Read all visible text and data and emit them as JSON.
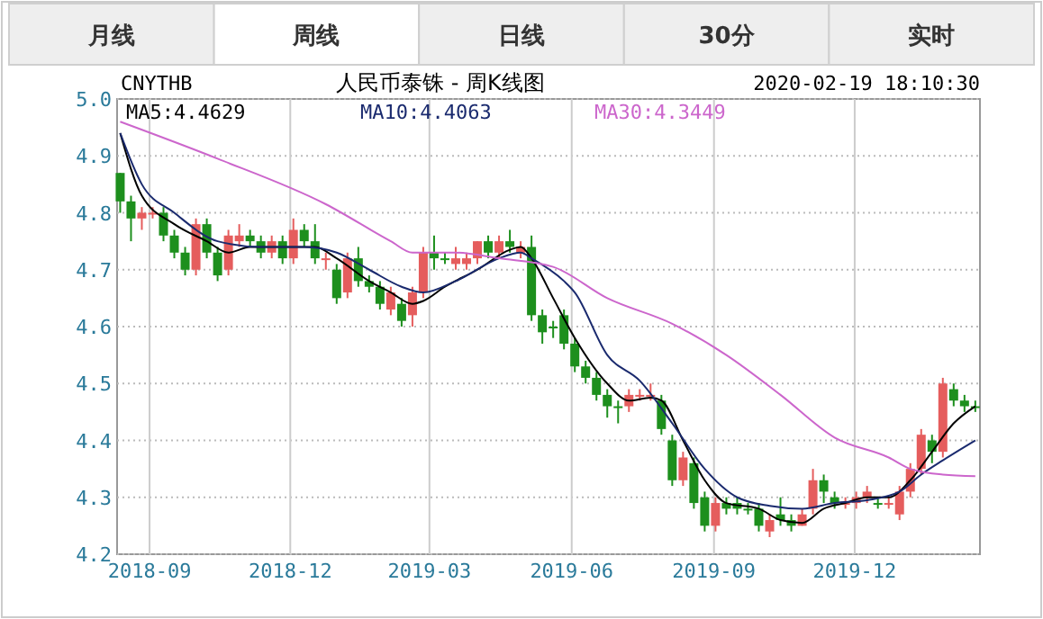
{
  "chart_data": {
    "type": "candlestick",
    "title": "人民币泰铢 - 周K线图",
    "annotations": [
      "月线",
      "周线",
      "日线",
      "30分",
      "实时",
      "CNYTHB",
      "2020-02-19 18:10:30"
    ],
    "x": [
      "2018-08-13",
      "2018-08-20",
      "2018-08-27",
      "2018-09-03",
      "2018-09-10",
      "2018-09-17",
      "2018-09-24",
      "2018-10-01",
      "2018-10-08",
      "2018-10-15",
      "2018-10-22",
      "2018-10-29",
      "2018-11-05",
      "2018-11-12",
      "2018-11-19",
      "2018-11-26",
      "2018-12-03",
      "2018-12-10",
      "2018-12-17",
      "2018-12-24",
      "2018-12-31",
      "2019-01-07",
      "2019-01-14",
      "2019-01-21",
      "2019-01-28",
      "2019-02-04",
      "2019-02-11",
      "2019-02-18",
      "2019-02-25",
      "2019-03-04",
      "2019-03-11",
      "2019-03-18",
      "2019-03-25",
      "2019-04-01",
      "2019-04-08",
      "2019-04-15",
      "2019-04-22",
      "2019-04-29",
      "2019-05-06",
      "2019-05-13",
      "2019-05-20",
      "2019-05-27",
      "2019-06-03",
      "2019-06-10",
      "2019-06-17",
      "2019-06-24",
      "2019-07-01",
      "2019-07-08",
      "2019-07-15",
      "2019-07-22",
      "2019-07-29",
      "2019-08-05",
      "2019-08-12",
      "2019-08-19",
      "2019-08-26",
      "2019-09-02",
      "2019-09-09",
      "2019-09-16",
      "2019-09-23",
      "2019-09-30",
      "2019-10-07",
      "2019-10-14",
      "2019-10-21",
      "2019-10-28",
      "2019-11-04",
      "2019-11-11",
      "2019-11-18",
      "2019-11-25",
      "2019-12-02",
      "2019-12-09",
      "2019-12-16",
      "2019-12-23",
      "2019-12-30",
      "2020-01-06",
      "2020-01-13",
      "2020-01-20",
      "2020-01-27",
      "2020-02-03",
      "2020-02-10",
      "2020-02-17"
    ],
    "ohlc": [
      [
        4.87,
        4.87,
        4.8,
        4.82
      ],
      [
        4.82,
        4.83,
        4.75,
        4.79
      ],
      [
        4.79,
        4.81,
        4.77,
        4.8
      ],
      [
        4.8,
        4.81,
        4.79,
        4.8
      ],
      [
        4.8,
        4.81,
        4.75,
        4.76
      ],
      [
        4.76,
        4.77,
        4.72,
        4.73
      ],
      [
        4.73,
        4.74,
        4.69,
        4.7
      ],
      [
        4.7,
        4.79,
        4.69,
        4.78
      ],
      [
        4.78,
        4.79,
        4.72,
        4.73
      ],
      [
        4.73,
        4.74,
        4.68,
        4.69
      ],
      [
        4.7,
        4.77,
        4.69,
        4.76
      ],
      [
        4.75,
        4.78,
        4.74,
        4.76
      ],
      [
        4.76,
        4.77,
        4.74,
        4.75
      ],
      [
        4.75,
        4.76,
        4.72,
        4.73
      ],
      [
        4.73,
        4.76,
        4.72,
        4.75
      ],
      [
        4.75,
        4.76,
        4.71,
        4.72
      ],
      [
        4.72,
        4.79,
        4.71,
        4.77
      ],
      [
        4.77,
        4.78,
        4.74,
        4.75
      ],
      [
        4.75,
        4.78,
        4.71,
        4.72
      ],
      [
        4.72,
        4.73,
        4.7,
        4.72
      ],
      [
        4.7,
        4.71,
        4.64,
        4.65
      ],
      [
        4.66,
        4.73,
        4.65,
        4.72
      ],
      [
        4.72,
        4.74,
        4.67,
        4.68
      ],
      [
        4.68,
        4.69,
        4.66,
        4.67
      ],
      [
        4.67,
        4.68,
        4.63,
        4.64
      ],
      [
        4.63,
        4.67,
        4.62,
        4.66
      ],
      [
        4.64,
        4.65,
        4.6,
        4.61
      ],
      [
        4.62,
        4.67,
        4.6,
        4.66
      ],
      [
        4.66,
        4.74,
        4.65,
        4.73
      ],
      [
        4.73,
        4.76,
        4.7,
        4.72
      ],
      [
        4.72,
        4.73,
        4.71,
        4.72
      ],
      [
        4.71,
        4.74,
        4.7,
        4.72
      ],
      [
        4.71,
        4.73,
        4.7,
        4.72
      ],
      [
        4.72,
        4.75,
        4.71,
        4.75
      ],
      [
        4.75,
        4.76,
        4.72,
        4.73
      ],
      [
        4.73,
        4.76,
        4.72,
        4.75
      ],
      [
        4.75,
        4.77,
        4.73,
        4.74
      ],
      [
        4.73,
        4.75,
        4.72,
        4.74
      ],
      [
        4.74,
        4.76,
        4.61,
        4.62
      ],
      [
        4.62,
        4.63,
        4.57,
        4.59
      ],
      [
        4.6,
        4.61,
        4.58,
        4.6
      ],
      [
        4.62,
        4.63,
        4.56,
        4.57
      ],
      [
        4.57,
        4.58,
        4.52,
        4.53
      ],
      [
        4.53,
        4.54,
        4.5,
        4.51
      ],
      [
        4.51,
        4.52,
        4.47,
        4.48
      ],
      [
        4.48,
        4.49,
        4.44,
        4.46
      ],
      [
        4.46,
        4.47,
        4.43,
        4.46
      ],
      [
        4.46,
        4.49,
        4.45,
        4.48
      ],
      [
        4.48,
        4.49,
        4.47,
        4.48
      ],
      [
        4.48,
        4.5,
        4.47,
        4.48
      ],
      [
        4.47,
        4.48,
        4.41,
        4.42
      ],
      [
        4.4,
        4.41,
        4.32,
        4.33
      ],
      [
        4.33,
        4.38,
        4.32,
        4.37
      ],
      [
        4.36,
        4.37,
        4.28,
        4.29
      ],
      [
        4.3,
        4.31,
        4.24,
        4.25
      ],
      [
        4.25,
        4.3,
        4.24,
        4.29
      ],
      [
        4.29,
        4.3,
        4.27,
        4.28
      ],
      [
        4.29,
        4.3,
        4.27,
        4.28
      ],
      [
        4.28,
        4.29,
        4.27,
        4.28
      ],
      [
        4.28,
        4.29,
        4.24,
        4.25
      ],
      [
        4.24,
        4.27,
        4.23,
        4.26
      ],
      [
        4.27,
        4.3,
        4.25,
        4.26
      ],
      [
        4.26,
        4.27,
        4.24,
        4.25
      ],
      [
        4.25,
        4.28,
        4.25,
        4.27
      ],
      [
        4.28,
        4.35,
        4.27,
        4.33
      ],
      [
        4.33,
        4.34,
        4.29,
        4.31
      ],
      [
        4.3,
        4.31,
        4.28,
        4.29
      ],
      [
        4.29,
        4.3,
        4.28,
        4.29
      ],
      [
        4.29,
        4.31,
        4.28,
        4.3
      ],
      [
        4.3,
        4.32,
        4.29,
        4.31
      ],
      [
        4.29,
        4.3,
        4.28,
        4.29
      ],
      [
        4.29,
        4.3,
        4.28,
        4.29
      ],
      [
        4.27,
        4.32,
        4.26,
        4.31
      ],
      [
        4.31,
        4.36,
        4.3,
        4.35
      ],
      [
        4.35,
        4.42,
        4.34,
        4.41
      ],
      [
        4.4,
        4.41,
        4.36,
        4.38
      ],
      [
        4.38,
        4.51,
        4.37,
        4.5
      ],
      [
        4.49,
        4.5,
        4.46,
        4.47
      ],
      [
        4.47,
        4.48,
        4.45,
        4.46
      ],
      [
        4.46,
        4.47,
        4.45,
        4.46
      ]
    ],
    "colors": [
      "#1d8f1d",
      "#1d8f1d",
      "#e55d5d",
      "#e55d5d",
      "#1d8f1d",
      "#1d8f1d",
      "#1d8f1d",
      "#e55d5d",
      "#1d8f1d",
      "#1d8f1d",
      "#e55d5d",
      "#e55d5d",
      "#1d8f1d",
      "#1d8f1d",
      "#e55d5d",
      "#1d8f1d",
      "#e55d5d",
      "#1d8f1d",
      "#1d8f1d",
      "#e55d5d",
      "#1d8f1d",
      "#e55d5d",
      "#1d8f1d",
      "#1d8f1d",
      "#1d8f1d",
      "#e55d5d",
      "#1d8f1d",
      "#e55d5d",
      "#e55d5d",
      "#1d8f1d",
      "#1d8f1d",
      "#e55d5d",
      "#e55d5d",
      "#e55d5d",
      "#1d8f1d",
      "#e55d5d",
      "#1d8f1d",
      "#e55d5d",
      "#1d8f1d",
      "#1d8f1d",
      "#1d8f1d",
      "#1d8f1d",
      "#1d8f1d",
      "#1d8f1d",
      "#1d8f1d",
      "#1d8f1d",
      "#1d8f1d",
      "#e55d5d",
      "#e55d5d",
      "#e55d5d",
      "#1d8f1d",
      "#1d8f1d",
      "#e55d5d",
      "#1d8f1d",
      "#1d8f1d",
      "#e55d5d",
      "#1d8f1d",
      "#1d8f1d",
      "#1d8f1d",
      "#1d8f1d",
      "#e55d5d",
      "#1d8f1d",
      "#1d8f1d",
      "#e55d5d",
      "#e55d5d",
      "#1d8f1d",
      "#1d8f1d",
      "#e55d5d",
      "#e55d5d",
      "#e55d5d",
      "#1d8f1d",
      "#e55d5d",
      "#e55d5d",
      "#e55d5d",
      "#e55d5d",
      "#1d8f1d",
      "#e55d5d",
      "#1d8f1d",
      "#1d8f1d",
      "#1d8f1d"
    ],
    "series": [
      {
        "type": "line",
        "name": "MA5:4.4629",
        "color": "#000000",
        "x": [
          "2018-08-13",
          "2018-08-27",
          "2018-09-17",
          "2018-10-08",
          "2018-10-22",
          "2018-11-05",
          "2018-11-26",
          "2018-12-17",
          "2018-12-31",
          "2019-01-21",
          "2019-02-04",
          "2019-02-18",
          "2019-02-25",
          "2019-03-11",
          "2019-04-01",
          "2019-04-22",
          "2019-04-29",
          "2019-05-06",
          "2019-05-20",
          "2019-06-03",
          "2019-06-24",
          "2019-07-08",
          "2019-07-22",
          "2019-07-29",
          "2019-08-12",
          "2019-08-26",
          "2019-09-09",
          "2019-09-30",
          "2019-10-14",
          "2019-10-28",
          "2019-11-11",
          "2019-11-25",
          "2019-12-09",
          "2019-12-23",
          "2020-01-06",
          "2020-01-20",
          "2020-02-03",
          "2020-02-17"
        ],
        "values": [
          4.94,
          4.83,
          4.78,
          4.75,
          4.73,
          4.74,
          4.74,
          4.74,
          4.72,
          4.68,
          4.66,
          4.64,
          4.645,
          4.67,
          4.7,
          4.735,
          4.74,
          4.72,
          4.65,
          4.58,
          4.5,
          4.47,
          4.475,
          4.47,
          4.4,
          4.33,
          4.29,
          4.28,
          4.26,
          4.255,
          4.28,
          4.29,
          4.3,
          4.3,
          4.33,
          4.38,
          4.43,
          4.46
        ]
      },
      {
        "type": "line",
        "name": "MA10:4.4063",
        "color": "#1a2a6e",
        "x": [
          "2018-08-13",
          "2018-08-27",
          "2018-09-17",
          "2018-10-15",
          "2018-11-12",
          "2018-12-10",
          "2018-12-31",
          "2019-01-21",
          "2019-02-11",
          "2019-02-25",
          "2019-03-18",
          "2019-04-15",
          "2019-04-29",
          "2019-05-06",
          "2019-05-27",
          "2019-06-03",
          "2019-06-24",
          "2019-07-15",
          "2019-08-05",
          "2019-08-26",
          "2019-09-16",
          "2019-10-07",
          "2019-10-28",
          "2019-11-18",
          "2019-12-09",
          "2019-12-30",
          "2020-01-13",
          "2020-01-27",
          "2020-02-17"
        ],
        "values": [
          4.94,
          4.85,
          4.8,
          4.75,
          4.74,
          4.74,
          4.73,
          4.7,
          4.67,
          4.66,
          4.68,
          4.72,
          4.73,
          4.72,
          4.68,
          4.66,
          4.55,
          4.505,
          4.43,
          4.35,
          4.3,
          4.285,
          4.28,
          4.29,
          4.295,
          4.31,
          4.34,
          4.365,
          4.4
        ]
      },
      {
        "type": "line",
        "name": "MA30:4.3449",
        "color": "#cc66cc",
        "x": [
          "2018-08-13",
          "2018-10-15",
          "2018-12-24",
          "2019-02-04",
          "2019-02-18",
          "2019-03-18",
          "2019-04-15",
          "2019-05-20",
          "2019-06-24",
          "2019-08-05",
          "2019-09-09",
          "2019-10-14",
          "2019-11-18",
          "2019-12-23",
          "2020-01-06",
          "2020-01-27",
          "2020-02-17"
        ],
        "values": [
          4.96,
          4.895,
          4.815,
          4.75,
          4.73,
          4.73,
          4.72,
          4.705,
          4.65,
          4.605,
          4.55,
          4.48,
          4.405,
          4.37,
          4.35,
          4.34,
          4.337
        ]
      }
    ],
    "xlim": [
      "2018-08-11",
      "2020-02-20"
    ],
    "xticks": [
      "2018-09",
      "2018-12",
      "2019-03",
      "2019-06",
      "2019-09",
      "2019-12"
    ],
    "ylim": [
      4.2,
      5.0
    ],
    "yticks": [
      {
        "value": 4.2,
        "label": "4.2"
      },
      4.3,
      4.4,
      4.5,
      4.6,
      4.7,
      4.8,
      4.9,
      {
        "value": 5.0,
        "label": "5.0"
      }
    ],
    "grid": true,
    "legend": "top"
  }
}
